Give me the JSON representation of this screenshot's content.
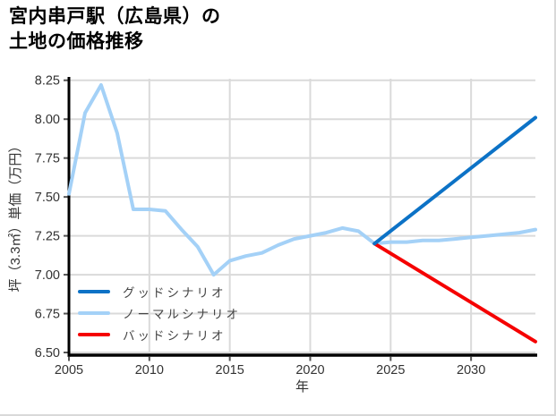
{
  "header": {
    "title_line1": "宮内串戸駅（広島県）の",
    "title_line2": "土地の価格推移"
  },
  "chart_data": {
    "type": "line",
    "title": "宮内串戸駅（広島県）の土地の価格推移",
    "xlabel": "年",
    "ylabel": "坪（3.3㎡）単価（万円）",
    "xlim": [
      2005,
      2034
    ],
    "ylim": [
      6.5,
      8.26
    ],
    "xticks": [
      2005,
      2010,
      2015,
      2020,
      2025,
      2030
    ],
    "yticks": [
      6.5,
      6.75,
      7.0,
      7.25,
      7.5,
      7.75,
      8.0,
      8.25
    ],
    "grid": true,
    "legend_position": "lower-left",
    "colors": {
      "good": "#0c72c6",
      "normal": "#a4d1f7",
      "bad": "#f50000",
      "gridline": "#dadada",
      "axis": "#000000",
      "tick_label": "#333333"
    },
    "series": [
      {
        "id": "normal",
        "name": "ノーマルシナリオ",
        "color": "#a4d1f7",
        "x": [
          2005,
          2006,
          2007,
          2008,
          2009,
          2010,
          2011,
          2012,
          2013,
          2014,
          2015,
          2016,
          2017,
          2018,
          2019,
          2020,
          2021,
          2022,
          2023,
          2024,
          2025,
          2026,
          2027,
          2028,
          2029,
          2030,
          2031,
          2032,
          2033,
          2034
        ],
        "values": [
          7.52,
          8.04,
          8.22,
          7.91,
          7.42,
          7.42,
          7.41,
          7.29,
          7.18,
          7.0,
          7.09,
          7.12,
          7.14,
          7.19,
          7.23,
          7.25,
          7.27,
          7.3,
          7.28,
          7.2,
          7.21,
          7.21,
          7.22,
          7.22,
          7.23,
          7.24,
          7.25,
          7.26,
          7.27,
          7.29
        ]
      },
      {
        "id": "bad",
        "name": "バッドシナリオ",
        "color": "#f50000",
        "x": [
          2024,
          2034
        ],
        "values": [
          7.2,
          6.57
        ]
      },
      {
        "id": "good",
        "name": "グッドシナリオ",
        "color": "#0c72c6",
        "x": [
          2024,
          2034
        ],
        "values": [
          7.2,
          8.01
        ]
      }
    ],
    "legend": [
      {
        "id": "good",
        "label": "グッドシナリオ",
        "color": "#0c72c6"
      },
      {
        "id": "normal",
        "label": "ノーマルシナリオ",
        "color": "#a4d1f7"
      },
      {
        "id": "bad",
        "label": "バッドシナリオ",
        "color": "#f50000"
      }
    ]
  }
}
